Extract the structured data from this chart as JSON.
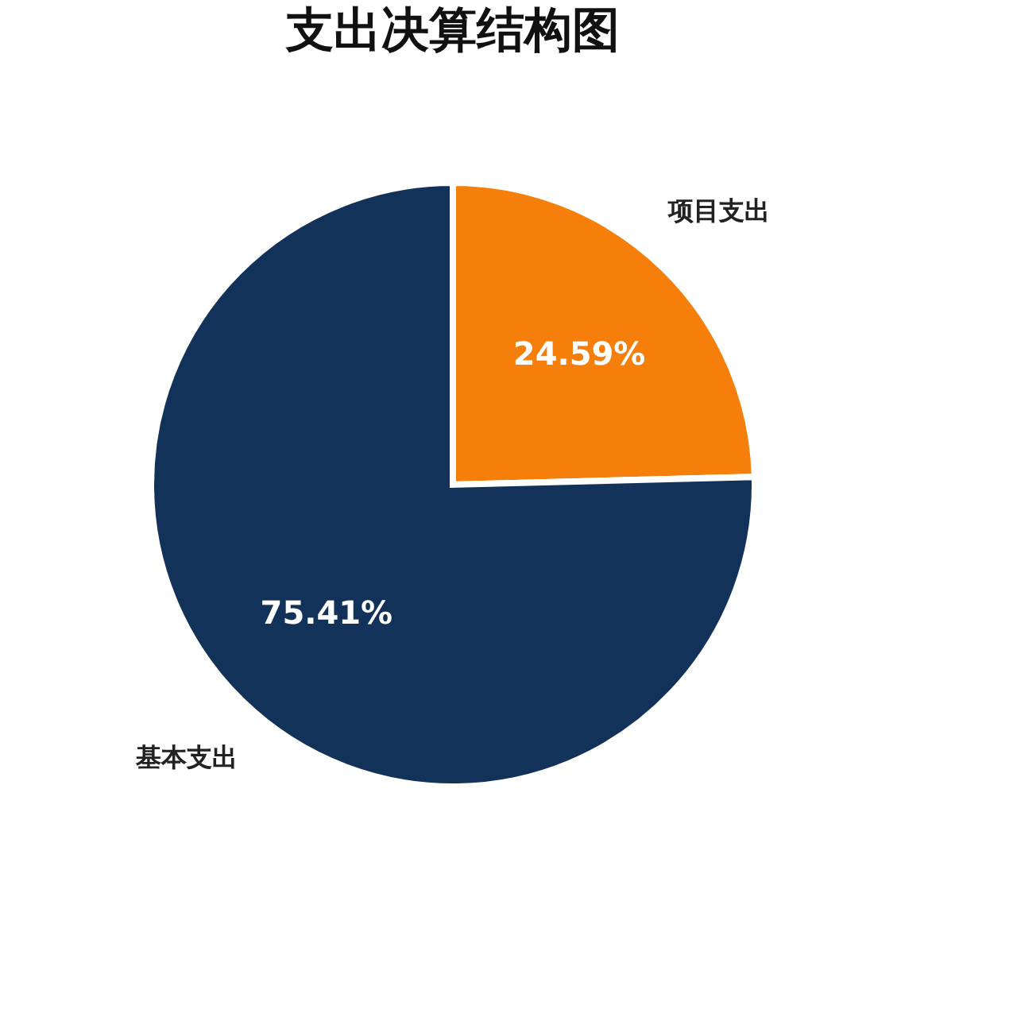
{
  "chart_data": {
    "type": "pie",
    "title": "支出决算结构图",
    "categories": [
      "项目支出",
      "基本支出"
    ],
    "values": [
      24.59,
      75.41
    ],
    "colors": [
      "#f57f0a",
      "#12325a"
    ],
    "value_labels": [
      "24.59%",
      "75.41%"
    ],
    "legend": false
  }
}
